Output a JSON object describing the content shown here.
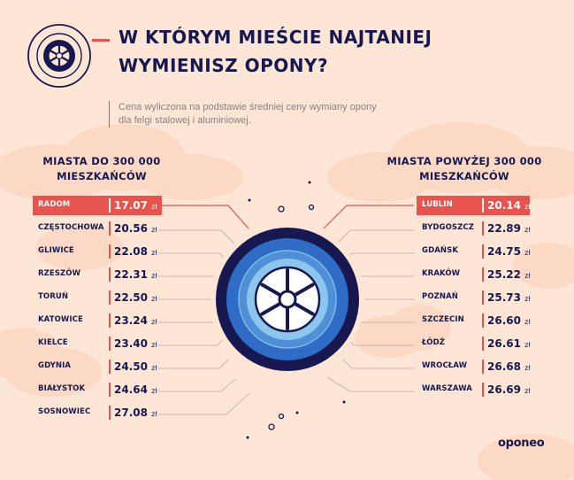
{
  "title": {
    "line1": "W KTÓRYM MIEŚCIE NAJTANIEJ",
    "line2": "WYMIENISZ OPONY?"
  },
  "subtitle": {
    "line1": "Cena wyliczona na podstawie średniej ceny wymiany opony",
    "line2": "dla felgi stalowej i aluminiowej."
  },
  "left_section": {
    "line1": "MIASTA DO 300 000",
    "line2": "MIESZKAŃCÓW"
  },
  "right_section": {
    "line1": "MIASTA POWYŻEJ 300 000",
    "line2": "MIESZKAŃCÓW"
  },
  "currency": "zł",
  "left_cities": [
    {
      "name": "RADOM",
      "price": "17.07"
    },
    {
      "name": "CZĘSTOCHOWA",
      "price": "20.56"
    },
    {
      "name": "GLIWICE",
      "price": "22.08"
    },
    {
      "name": "RZESZÓW",
      "price": "22.31"
    },
    {
      "name": "TORUŃ",
      "price": "22.50"
    },
    {
      "name": "KATOWICE",
      "price": "23.24"
    },
    {
      "name": "KIELCE",
      "price": "23.40"
    },
    {
      "name": "GDYNIA",
      "price": "24.50"
    },
    {
      "name": "BIAŁYSTOK",
      "price": "24.64"
    },
    {
      "name": "SOSNOWIEC",
      "price": "27.08"
    }
  ],
  "right_cities": [
    {
      "name": "LUBLIN",
      "price": "20.14"
    },
    {
      "name": "BYDGOSZCZ",
      "price": "22.89"
    },
    {
      "name": "GDAŃSK",
      "price": "24.75"
    },
    {
      "name": "KRAKÓW",
      "price": "25.22"
    },
    {
      "name": "POZNAŃ",
      "price": "25.73"
    },
    {
      "name": "SZCZECIN",
      "price": "26.60"
    },
    {
      "name": "ŁÓDŹ",
      "price": "26.61"
    },
    {
      "name": "WROCŁAW",
      "price": "26.68"
    },
    {
      "name": "WARSZAWA",
      "price": "26.69"
    }
  ],
  "brand": "oponeo",
  "colors": {
    "background": "#fde6d6",
    "navy": "#16184f",
    "accent": "#e8534e",
    "blue": "#2f6cc6",
    "light_blue": "#8cc6ec"
  },
  "icons": {
    "header": "wheel-icon",
    "center": "wheel-icon"
  }
}
